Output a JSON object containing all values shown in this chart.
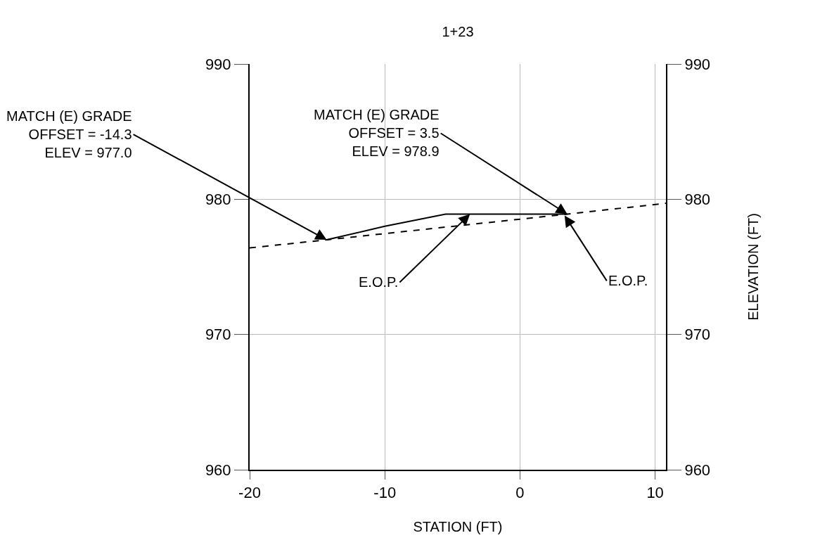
{
  "chart_data": {
    "type": "line",
    "title": "1+23",
    "xlabel": "STATION (FT)",
    "y2label": "ELEVATION (FT)",
    "xlim": [
      -20,
      10.8
    ],
    "xticks": [
      -20,
      -10,
      0,
      10
    ],
    "ylim": [
      960,
      990
    ],
    "yticks": [
      960,
      970,
      980,
      990
    ],
    "y2lim": [
      960,
      990
    ],
    "y2ticks": [
      960,
      970,
      980,
      990
    ],
    "grid": true,
    "series": [
      {
        "color": "#000000",
        "line_style": "dashed",
        "x": [
          -20,
          -14.3,
          3.5,
          10.8
        ],
        "values": [
          976.4,
          977.0,
          978.9,
          979.7
        ]
      },
      {
        "color": "#000000",
        "line_style": "solid",
        "x": [
          -14.3,
          -10,
          -5.5,
          3.5
        ],
        "values": [
          977.0,
          978.0,
          978.9,
          978.9
        ]
      }
    ],
    "annotations": [
      {
        "text": "MATCH (E) GRADE\nOFFSET = -14.3\nELEV = 977.0",
        "x": -14.3,
        "y": 977.0
      },
      {
        "text": "MATCH (E) GRADE\nOFFSET = 3.5\nELEV = 978.9",
        "x": 3.5,
        "y": 978.9
      },
      {
        "text": "E.O.P.",
        "x": -3.7,
        "y": 978.9
      },
      {
        "text": "E.O.P.",
        "x": 3.3,
        "y": 978.8
      }
    ]
  }
}
